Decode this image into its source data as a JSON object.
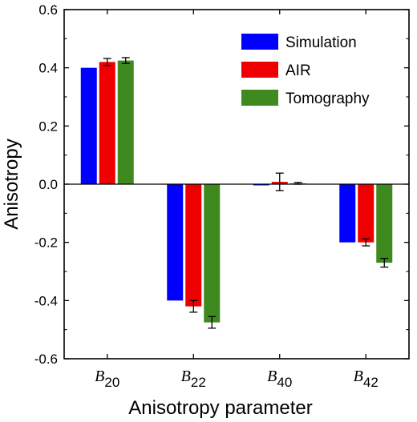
{
  "chart_data": {
    "type": "bar",
    "xlabel": "Anisotropy parameter",
    "ylabel": "Anisotropy",
    "ylim": [
      -0.6,
      0.6
    ],
    "yticks": [
      -0.6,
      -0.4,
      -0.2,
      0.0,
      0.2,
      0.4,
      0.6
    ],
    "ytick_labels": [
      "-0.6",
      "-0.4",
      "-0.2",
      "0.0",
      "0.2",
      "0.4",
      "0.6"
    ],
    "categories": [
      {
        "main": "B",
        "sub": "20"
      },
      {
        "main": "B",
        "sub": "22"
      },
      {
        "main": "B",
        "sub": "40"
      },
      {
        "main": "B",
        "sub": "42"
      }
    ],
    "legend_position": "top-right",
    "series": [
      {
        "name": "Simulation",
        "color": "#0000ff",
        "values": [
          0.4,
          -0.4,
          0.0,
          -0.2
        ],
        "errors": [
          null,
          null,
          null,
          null
        ]
      },
      {
        "name": "AIR",
        "color": "#ee0000",
        "values": [
          0.42,
          -0.42,
          0.008,
          -0.2
        ],
        "errors": [
          0.012,
          0.02,
          0.03,
          0.012
        ]
      },
      {
        "name": "Tomography",
        "color": "#3f8a1f",
        "values": [
          0.425,
          -0.475,
          0.003,
          -0.27
        ],
        "errors": [
          0.01,
          0.02,
          0.003,
          0.015
        ]
      }
    ]
  }
}
